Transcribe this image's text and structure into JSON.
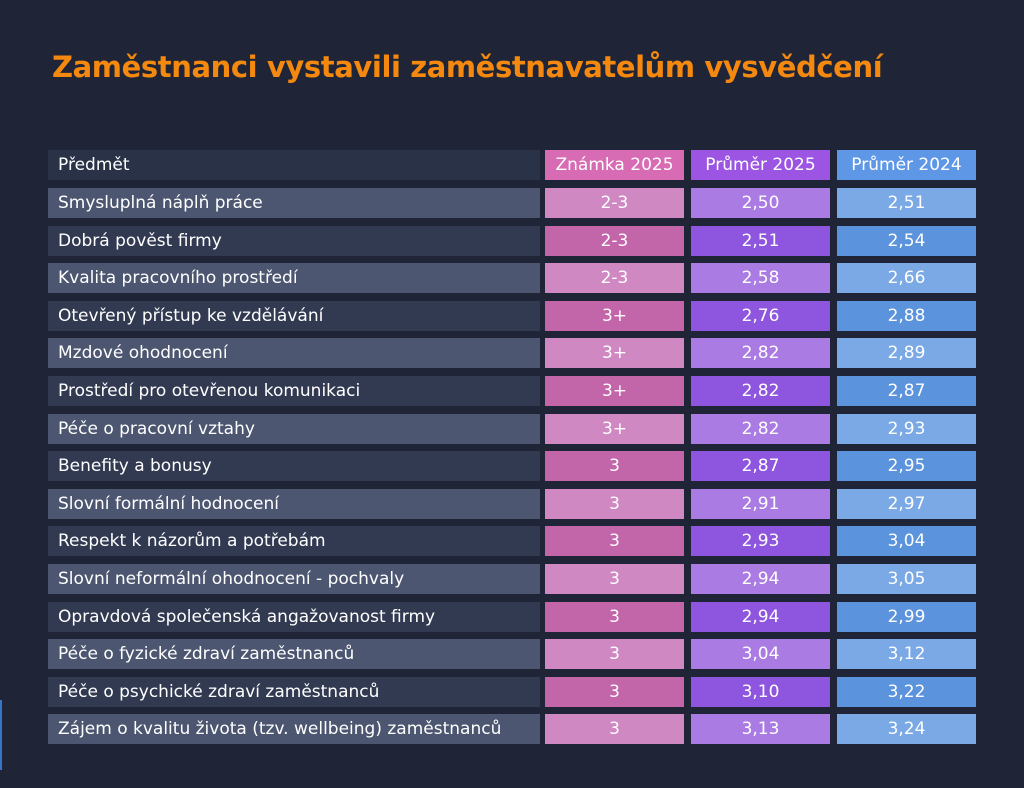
{
  "title": "Zaměstnanci vystavili zaměstnavatelům vysvědčení",
  "colors": {
    "background": "#1f2536",
    "title": "#f5890f",
    "grade_2025": "#d088c3",
    "avg_2025": "#ab7be4",
    "avg_2024": "#7aa9e6"
  },
  "chart_data": {
    "type": "table",
    "title": "Zaměstnanci vystavili zaměstnavatelům vysvědčení",
    "columns": [
      "Předmět",
      "Známka 2025",
      "Průměr 2025",
      "Průměr 2024"
    ],
    "rows": [
      [
        "Smysluplná náplň práce",
        "2-3",
        "2,50",
        "2,51"
      ],
      [
        "Dobrá pověst firmy",
        "2-3",
        "2,51",
        "2,54"
      ],
      [
        "Kvalita pracovního prostředí",
        "2-3",
        "2,58",
        "2,66"
      ],
      [
        "Otevřený přístup ke vzdělávání",
        "3+",
        "2,76",
        "2,88"
      ],
      [
        "Mzdové ohodnocení",
        "3+",
        "2,82",
        "2,89"
      ],
      [
        "Prostředí pro otevřenou komunikaci",
        "3+",
        "2,82",
        "2,87"
      ],
      [
        "Péče o pracovní vztahy",
        "3+",
        "2,82",
        "2,93"
      ],
      [
        "Benefity a bonusy",
        "3",
        "2,87",
        "2,95"
      ],
      [
        "Slovní formální hodnocení",
        "3",
        "2,91",
        "2,97"
      ],
      [
        "Respekt k názorům a potřebám",
        "3",
        "2,93",
        "3,04"
      ],
      [
        "Slovní neformální ohodnocení - pochvaly",
        "3",
        "2,94",
        "3,05"
      ],
      [
        "Opravdová společenská angažovanost firmy",
        "3",
        "2,94",
        "2,99"
      ],
      [
        "Péče o fyzické zdraví zaměstnanců",
        "3",
        "3,04",
        "3,12"
      ],
      [
        "Péče o psychické zdraví zaměstnanců",
        "3",
        "3,10",
        "3,22"
      ],
      [
        "Zájem o kvalitu života (tzv. wellbeing) zaměstnanců",
        "3",
        "3,13",
        "3,24"
      ]
    ]
  }
}
